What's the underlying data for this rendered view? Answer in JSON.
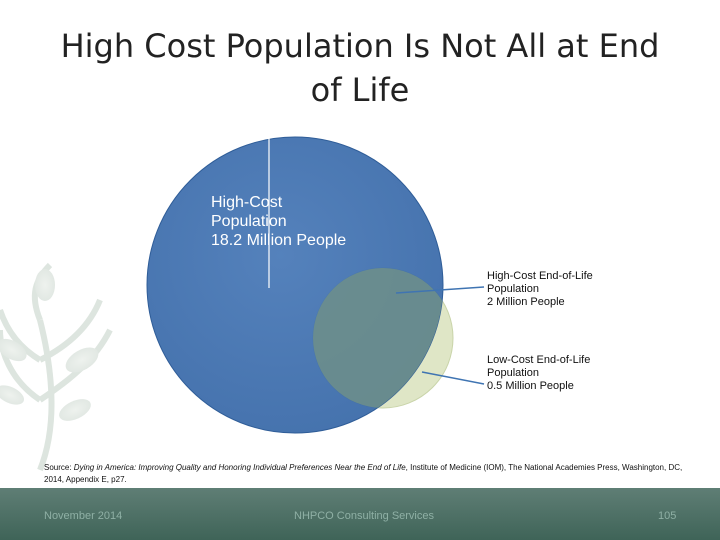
{
  "slide": {
    "title_lines": [
      "High Cost Population Is Not All at End",
      "of Life"
    ]
  },
  "diagram": {
    "large_circle": {
      "lines": [
        "High-Cost",
        "Population",
        "18.2 Million People"
      ],
      "color": "#3d6fae"
    },
    "overlap_callout": {
      "lines": [
        "High-Cost End-of-Life",
        "Population",
        "2 Million People"
      ]
    },
    "small_circle_callout": {
      "lines": [
        "Low-Cost End-of-Life",
        "Population",
        "0.5 Million People"
      ],
      "color": "#dfe6c6"
    }
  },
  "source": {
    "prefix": "Source: ",
    "italic": "Dying in America: Improving Quality and Honoring Individual Preferences Near the End of Life",
    "suffix": ", Institute of Medicine (IOM), The National Academies Press, Washington, DC, 2014, Appendix E, p27."
  },
  "footer": {
    "left": "November 2014",
    "center": "NHPCO Consulting Services",
    "right": "105"
  },
  "colors": {
    "footer_bar": "#4b6f64",
    "footer_text": "#8fb0a5"
  }
}
